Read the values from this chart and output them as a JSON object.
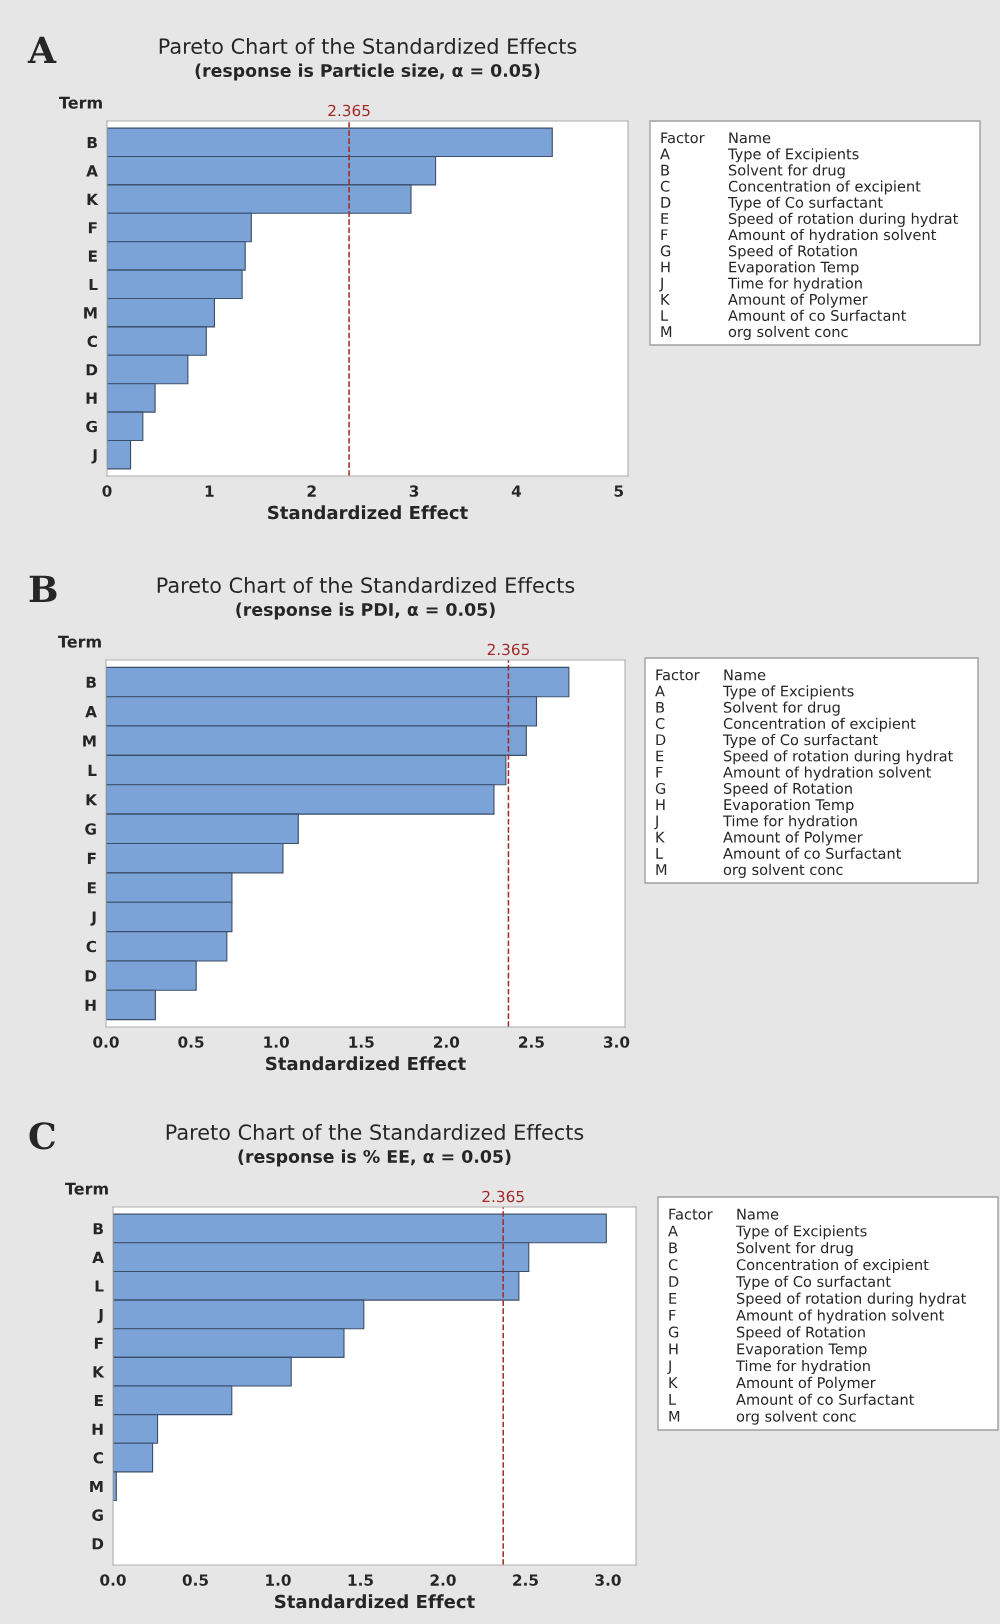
{
  "chart_data": [
    {
      "type": "bar",
      "orientation": "horizontal",
      "title": "Pareto Chart of the Standardized Effects",
      "subtitle": "(response is Particle size, α = 0.05)",
      "xlabel": "Standardized Effect",
      "ylabel": "Term",
      "categories": [
        "B",
        "A",
        "K",
        "F",
        "E",
        "L",
        "M",
        "C",
        "D",
        "H",
        "G",
        "J"
      ],
      "values": [
        4.35,
        3.21,
        2.97,
        1.41,
        1.35,
        1.32,
        1.05,
        0.97,
        0.79,
        0.47,
        0.35,
        0.23
      ],
      "color": "#7ba3d8",
      "xlim": [
        0,
        5.09
      ],
      "xticks": [
        0,
        1,
        2,
        3,
        4,
        5
      ],
      "ref_lines": [
        {
          "axis": "x",
          "value": 2.365,
          "label": "2.365",
          "color": "#a52a2a",
          "line_style": "dashed"
        }
      ],
      "annotations": [
        "A",
        "Factor",
        "Name",
        "A",
        "Type of Excipients",
        "B",
        "Solvent for drug",
        "C",
        "Concentration of excipient",
        "D",
        "Type of Co surfactant",
        "E",
        "Speed of rotation during hydrat",
        "F",
        "Amount of hydration solvent",
        "G",
        "Speed of Rotation",
        "H",
        "Evaporation Temp",
        "J",
        "Time for hydration",
        "K",
        "Amount of Polymer",
        "L",
        "Amount of co Surfactant",
        "M",
        "org solvent conc"
      ]
    },
    {
      "type": "bar",
      "orientation": "horizontal",
      "title": "Pareto Chart of the Standardized Effects",
      "subtitle": "(response is PDI, α = 0.05)",
      "xlabel": "Standardized Effect",
      "ylabel": "Term",
      "categories": [
        "B",
        "A",
        "M",
        "L",
        "K",
        "G",
        "F",
        "E",
        "J",
        "C",
        "D",
        "H"
      ],
      "values": [
        2.72,
        2.53,
        2.47,
        2.35,
        2.28,
        1.13,
        1.04,
        0.74,
        0.74,
        0.71,
        0.53,
        0.29
      ],
      "color": "#7ba3d8",
      "xlim": [
        0,
        3.05
      ],
      "xticks": [
        {
          "value": 0,
          "label": "0.0"
        },
        0.5,
        {
          "value": 1,
          "label": "1.0"
        },
        1.5,
        {
          "value": 2,
          "label": "2.0"
        },
        2.5,
        {
          "value": 3,
          "label": "3.0"
        }
      ],
      "ref_lines": [
        {
          "axis": "x",
          "value": 2.365,
          "label": "2.365",
          "color": "#a52a2a",
          "line_style": "dashed"
        }
      ],
      "annotations": [
        "B",
        "Factor",
        "Name",
        "A",
        "Type of Excipients",
        "B",
        "Solvent for drug",
        "C",
        "Concentration of excipient",
        "D",
        "Type of Co surfactant",
        "E",
        "Speed of rotation during hydrat",
        "F",
        "Amount of hydration solvent",
        "G",
        "Speed of Rotation",
        "H",
        "Evaporation Temp",
        "J",
        "Time for hydration",
        "K",
        "Amount of Polymer",
        "L",
        "Amount of co Surfactant",
        "M",
        "org solvent conc"
      ]
    },
    {
      "type": "bar",
      "orientation": "horizontal",
      "title": "Pareto Chart of the Standardized Effects",
      "subtitle": "(response is % EE, α = 0.05)",
      "xlabel": "Standardized Effect",
      "ylabel": "Term",
      "categories": [
        "B",
        "A",
        "L",
        "J",
        "F",
        "K",
        "E",
        "H",
        "C",
        "M",
        "G",
        "D"
      ],
      "values": [
        2.99,
        2.52,
        2.46,
        1.52,
        1.4,
        1.08,
        0.72,
        0.27,
        0.24,
        0.02,
        null,
        null
      ],
      "color": "#7ba3d8",
      "xlim": [
        0,
        3.17
      ],
      "xticks": [
        {
          "value": 0,
          "label": "0.0"
        },
        0.5,
        {
          "value": 1,
          "label": "1.0"
        },
        1.5,
        {
          "value": 2,
          "label": "2.0"
        },
        2.5,
        {
          "value": 3,
          "label": "3.0"
        }
      ],
      "ref_lines": [
        {
          "axis": "x",
          "value": 2.365,
          "label": "2.365",
          "color": "#a52a2a",
          "line_style": "dashed"
        }
      ],
      "annotations": [
        "C",
        "Factor",
        "Name",
        "A",
        "Type of Excipients",
        "B",
        "Solvent for drug",
        "C",
        "Concentration of excipient",
        "D",
        "Type of Co surfactant",
        "E",
        "Speed of rotation during hydrat",
        "F",
        "Amount of hydration solvent",
        "G",
        "Speed of Rotation",
        "H",
        "Evaporation Temp",
        "J",
        "Time for hydration",
        "K",
        "Amount of Polymer",
        "L",
        "Amount of co Surfactant",
        "M",
        "org solvent conc"
      ]
    }
  ]
}
